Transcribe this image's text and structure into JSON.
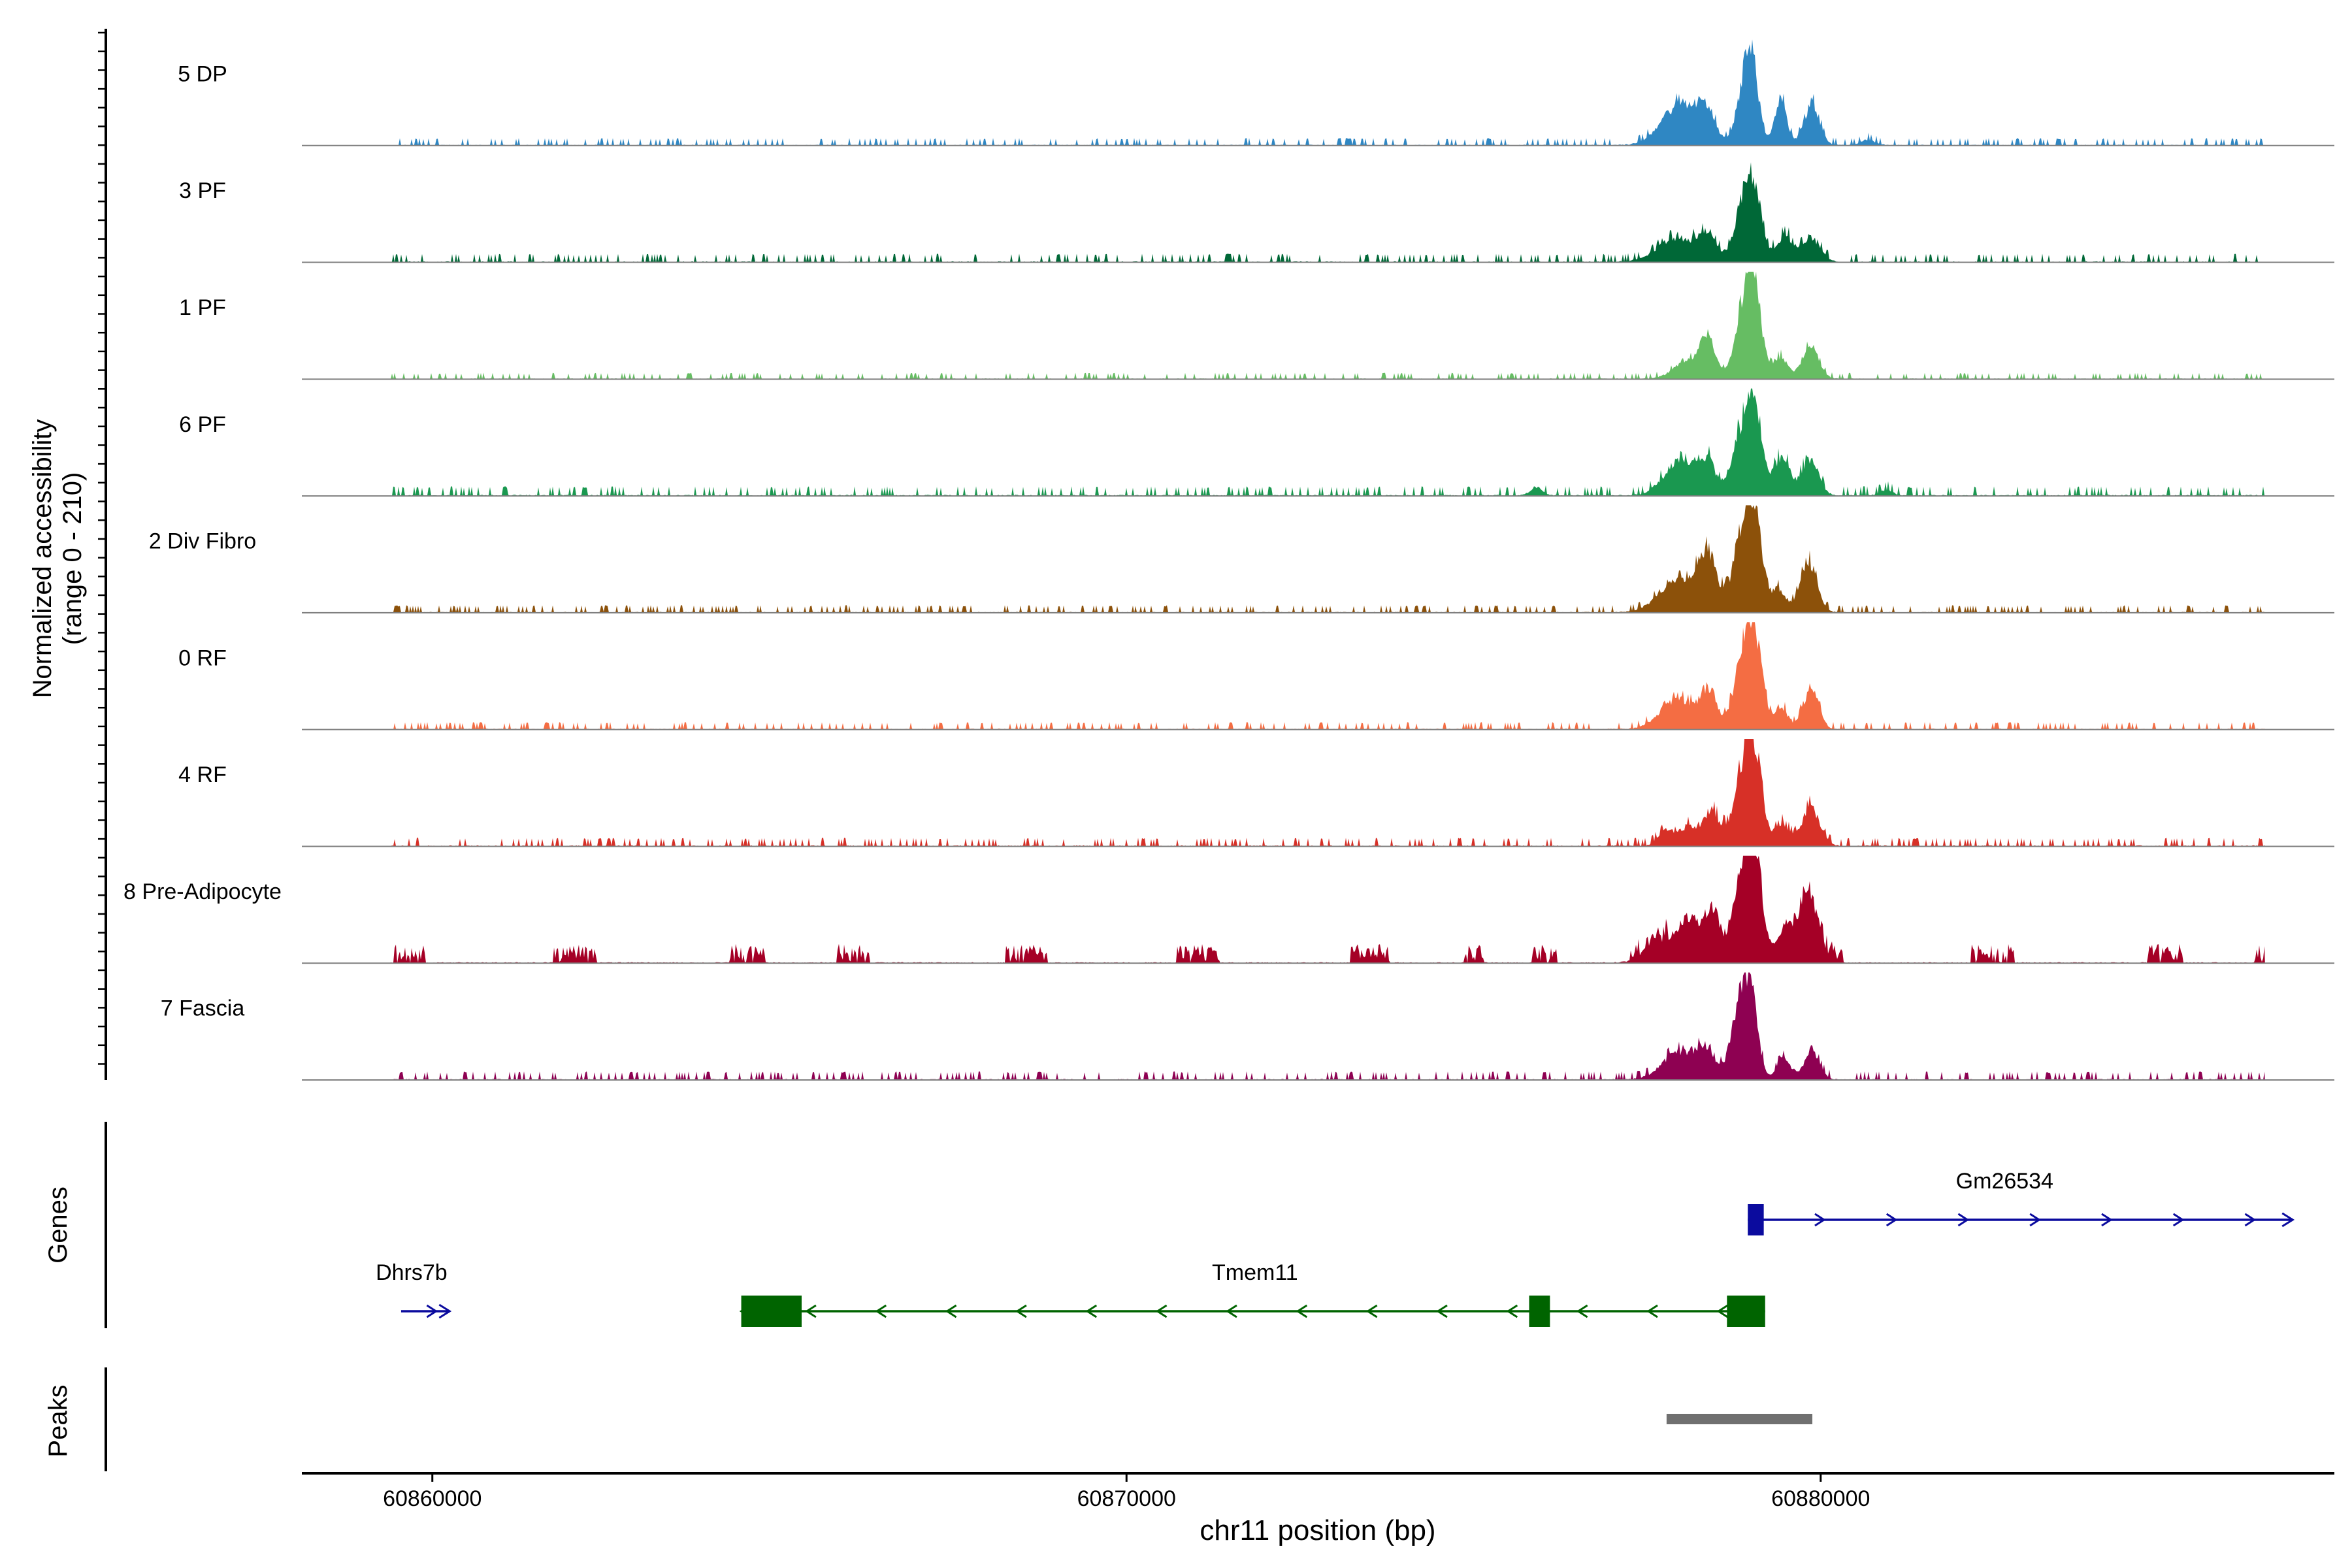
{
  "chart_data": {
    "type": "area",
    "title": "",
    "ylabel_line1": "Normalized accessibility",
    "ylabel_line2": "(range 0 - 210)",
    "y_range": [
      0,
      210
    ],
    "xlabel": "chr11 position (bp)",
    "xlim": [
      60858120,
      60887400
    ],
    "xticks": [
      60860000,
      60870000,
      60880000
    ],
    "xtick_labels": [
      "60860000",
      "60870000",
      "60880000"
    ],
    "coverage_region": [
      60859400,
      60886400
    ],
    "tracks": [
      {
        "name": "5 DP",
        "color": "#2f87c3",
        "noise": 0.07,
        "peaks": [
          [
            60877970,
            260,
            0.38
          ],
          [
            60878350,
            130,
            0.26
          ],
          [
            60878930,
            120,
            0.62
          ],
          [
            60879020,
            90,
            0.4
          ],
          [
            60879420,
            90,
            0.42
          ],
          [
            60879870,
            110,
            0.38
          ],
          [
            60880680,
            100,
            0.05
          ]
        ]
      },
      {
        "name": "3 PF",
        "color": "#006837",
        "noise": 0.08,
        "peaks": [
          [
            60877930,
            280,
            0.22
          ],
          [
            60878370,
            130,
            0.2
          ],
          [
            60878920,
            140,
            0.58
          ],
          [
            60879050,
            110,
            0.4
          ],
          [
            60879480,
            120,
            0.24
          ],
          [
            60879860,
            130,
            0.22
          ]
        ]
      },
      {
        "name": "1 PF",
        "color": "#66bd63",
        "noise": 0.06,
        "peaks": [
          [
            60878080,
            200,
            0.16
          ],
          [
            60878380,
            110,
            0.33
          ],
          [
            60878920,
            140,
            0.7
          ],
          [
            60879050,
            110,
            0.5
          ],
          [
            60879420,
            100,
            0.2
          ],
          [
            60879850,
            120,
            0.3
          ]
        ]
      },
      {
        "name": "6 PF",
        "color": "#1a9850",
        "noise": 0.09,
        "peaks": [
          [
            60875900,
            80,
            0.08
          ],
          [
            60878000,
            240,
            0.33
          ],
          [
            60878380,
            110,
            0.25
          ],
          [
            60878900,
            160,
            0.62
          ],
          [
            60879050,
            110,
            0.45
          ],
          [
            60879440,
            120,
            0.35
          ],
          [
            60879850,
            120,
            0.33
          ],
          [
            60880950,
            90,
            0.05
          ]
        ]
      },
      {
        "name": "2 Div Fibro",
        "color": "#8c510a",
        "noise": 0.07,
        "peaks": [
          [
            60877970,
            280,
            0.3
          ],
          [
            60878370,
            130,
            0.48
          ],
          [
            60878920,
            160,
            0.8
          ],
          [
            60879050,
            110,
            0.45
          ],
          [
            60879400,
            100,
            0.2
          ],
          [
            60879820,
            120,
            0.48
          ]
        ]
      },
      {
        "name": "0 RF",
        "color": "#f46d43",
        "noise": 0.07,
        "peaks": [
          [
            60877950,
            250,
            0.28
          ],
          [
            60878390,
            110,
            0.33
          ],
          [
            60878920,
            150,
            0.74
          ],
          [
            60879050,
            110,
            0.5
          ],
          [
            60879430,
            100,
            0.2
          ],
          [
            60879860,
            110,
            0.38
          ]
        ]
      },
      {
        "name": "4 RF",
        "color": "#d73027",
        "noise": 0.08,
        "peaks": [
          [
            60877770,
            110,
            0.14
          ],
          [
            60878100,
            140,
            0.18
          ],
          [
            60878430,
            110,
            0.32
          ],
          [
            60878920,
            160,
            0.74
          ],
          [
            60879060,
            110,
            0.45
          ],
          [
            60879450,
            100,
            0.2
          ],
          [
            60879860,
            130,
            0.35
          ]
        ]
      },
      {
        "name": "8 Pre-Adipocyte",
        "color": "#a50026",
        "noise": 0.1,
        "clustered": true,
        "peaks": [
          [
            60877700,
            220,
            0.16
          ],
          [
            60878150,
            200,
            0.4
          ],
          [
            60878450,
            90,
            0.38
          ],
          [
            60878890,
            160,
            0.8
          ],
          [
            60879050,
            120,
            0.68
          ],
          [
            60879800,
            150,
            0.6
          ],
          [
            60879480,
            100,
            0.3
          ]
        ]
      },
      {
        "name": "7 Fascia",
        "color": "#8e0152",
        "noise": 0.08,
        "peaks": [
          [
            60877990,
            250,
            0.26
          ],
          [
            60878350,
            120,
            0.2
          ],
          [
            60878860,
            140,
            0.74
          ],
          [
            60879000,
            100,
            0.45
          ],
          [
            60879470,
            100,
            0.2
          ],
          [
            60879870,
            110,
            0.25
          ]
        ]
      }
    ],
    "genes_label": "Genes",
    "genes": [
      {
        "name": "Gm26534",
        "color": "#0b0b9e",
        "strand": "+",
        "start": 60878950,
        "end": 60886800,
        "row": 1,
        "exons": [
          [
            60878950,
            60879180
          ]
        ],
        "label_pos": 60882650
      },
      {
        "name": "Tmem11",
        "color": "#006400",
        "strand": "-",
        "start": 60864450,
        "end": 60879200,
        "row": 2,
        "exons": [
          [
            60864450,
            60865320
          ],
          [
            60875800,
            60876100
          ],
          [
            60878650,
            60879200
          ]
        ],
        "label_pos": 60871850
      },
      {
        "name": "Dhrs7b",
        "color": "#0b0b9e",
        "strand": "+",
        "start": 60859550,
        "end": 60860250,
        "row": 2,
        "exons": [],
        "label_pos": 60859700
      }
    ],
    "peaks_label": "Peaks",
    "peak_regions": [
      [
        60877780,
        60879880
      ]
    ],
    "peak_color": "#707070"
  }
}
